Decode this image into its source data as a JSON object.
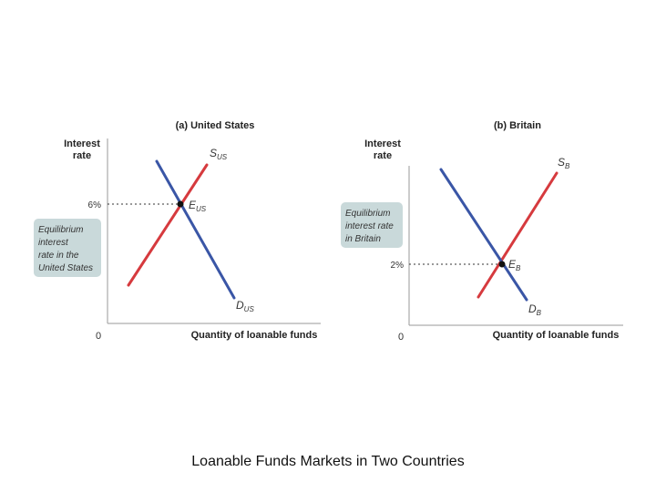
{
  "caption": "Loanable Funds Markets in Two Countries",
  "colors": {
    "supply": "#d63a3e",
    "demand": "#3a56a6",
    "axis": "#9a9a9a",
    "callout_bg": "#c9d9da"
  },
  "panels": [
    {
      "title": "(a) United States",
      "y_axis_label_line1": "Interest",
      "y_axis_label_line2": "rate",
      "x_axis_label": "Quantity of loanable funds",
      "origin_label": "0",
      "rate_tick": "6%",
      "supply_label": "S",
      "supply_sub": "US",
      "demand_label": "D",
      "demand_sub": "US",
      "eq_label": "E",
      "eq_sub": "US",
      "callout_lines": [
        "Equilibrium",
        "interest",
        "rate in the",
        "United States"
      ]
    },
    {
      "title": "(b) Britain",
      "y_axis_label_line1": "Interest",
      "y_axis_label_line2": "rate",
      "x_axis_label": "Quantity of loanable funds",
      "origin_label": "0",
      "rate_tick": "2%",
      "supply_label": "S",
      "supply_sub": "B",
      "demand_label": "D",
      "demand_sub": "B",
      "eq_label": "E",
      "eq_sub": "B",
      "callout_lines": [
        "Equilibrium",
        "interest rate",
        "in Britain"
      ]
    }
  ]
}
